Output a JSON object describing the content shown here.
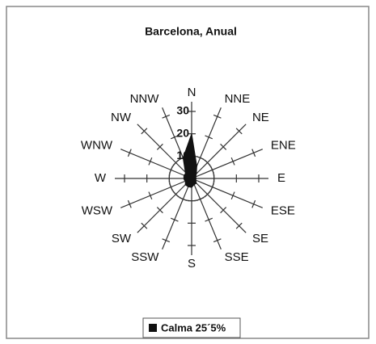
{
  "chart_data": {
    "type": "radar",
    "title": "Barcelona, Anual",
    "categories": [
      "N",
      "NNE",
      "NE",
      "ENE",
      "E",
      "ESE",
      "SE",
      "SSE",
      "S",
      "SSW",
      "SW",
      "WSW",
      "W",
      "WNW",
      "NW",
      "NNW"
    ],
    "series": [
      {
        "name": "Calma 25´5%",
        "color": "#111111",
        "values": [
          20,
          6,
          3,
          2,
          2,
          2,
          3,
          3,
          4,
          4,
          4,
          3,
          3,
          3,
          4,
          10
        ]
      }
    ],
    "rlim": [
      0,
      30
    ],
    "rticks": [
      0,
      10,
      20,
      30
    ],
    "legend": "bottom"
  }
}
